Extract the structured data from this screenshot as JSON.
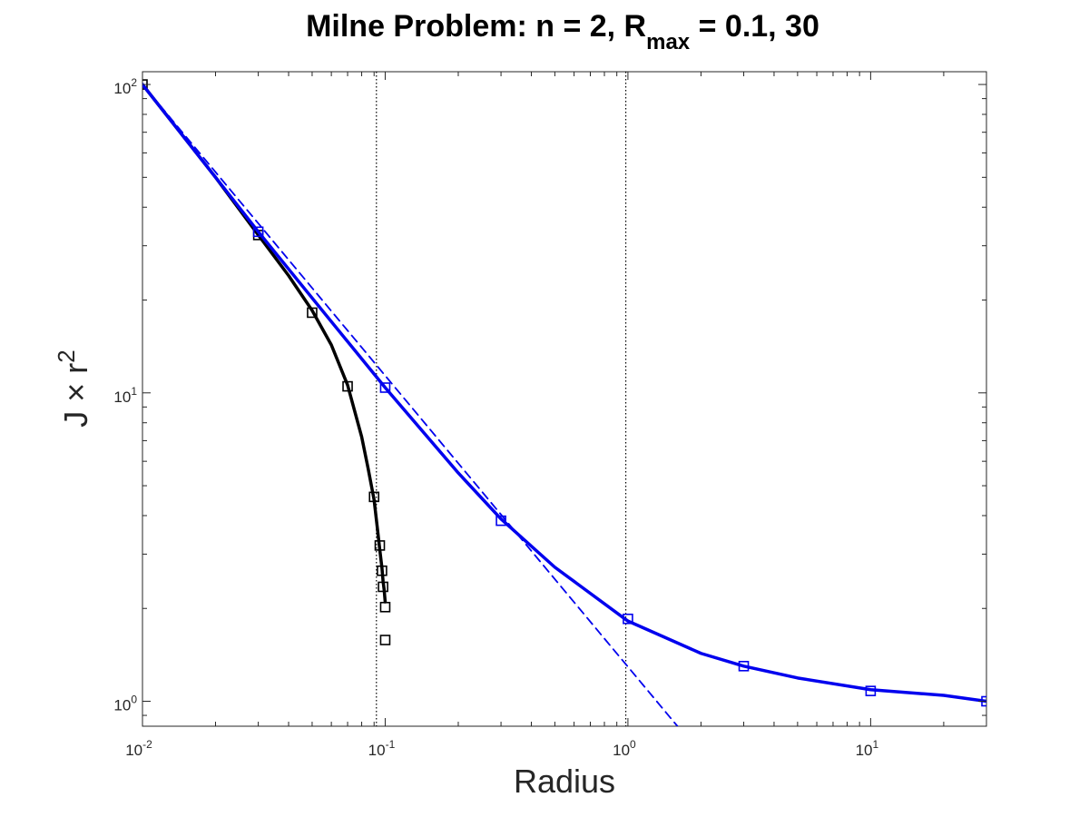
{
  "chart_data": {
    "type": "line",
    "title": {
      "main": "Milne Problem: n = 2, R",
      "subscript": "max",
      "rest": " = 0.1, 30"
    },
    "xlabel": "Radius",
    "ylabel": {
      "base": "J × r",
      "superscript": "2"
    },
    "xscale": "log",
    "yscale": "log",
    "xlim": [
      0.01,
      30
    ],
    "ylim": [
      0.83,
      110
    ],
    "grid": false,
    "x_ticks": [
      {
        "value": 0.01,
        "base": "10",
        "exp": "-2"
      },
      {
        "value": 0.1,
        "base": "10",
        "exp": "-1"
      },
      {
        "value": 1,
        "base": "10",
        "exp": "0"
      },
      {
        "value": 10,
        "base": "10",
        "exp": "1"
      }
    ],
    "y_ticks": [
      {
        "value": 1,
        "base": "10",
        "exp": "0"
      },
      {
        "value": 10,
        "base": "10",
        "exp": "1"
      },
      {
        "value": 100,
        "base": "10",
        "exp": "2"
      }
    ],
    "vlines": [
      0.092,
      0.98
    ],
    "series": [
      {
        "style": "solid",
        "color": "#000000",
        "x": [
          0.01,
          0.02,
          0.03,
          0.04,
          0.05,
          0.06,
          0.07,
          0.08,
          0.085,
          0.09,
          0.093,
          0.095,
          0.097,
          0.098,
          0.099,
          0.1
        ],
        "y": [
          100,
          50,
          32.5,
          24,
          18.5,
          14.3,
          10.6,
          7.2,
          5.7,
          4.5,
          3.6,
          3.1,
          2.7,
          2.45,
          2.3,
          2.1
        ]
      },
      {
        "style": "markers",
        "color": "#000000",
        "x": [
          0.01,
          0.03,
          0.05,
          0.07,
          0.09,
          0.095,
          0.097,
          0.098,
          0.1,
          0.1
        ],
        "y": [
          100,
          32.5,
          18.2,
          10.5,
          4.6,
          3.2,
          2.65,
          2.35,
          2.02,
          1.58
        ]
      },
      {
        "style": "solid",
        "color": "#0000ee",
        "x": [
          0.01,
          0.02,
          0.03,
          0.05,
          0.1,
          0.2,
          0.3,
          0.5,
          1,
          2,
          3,
          5,
          10,
          20,
          30
        ],
        "y": [
          100,
          50,
          33.3,
          20.3,
          10.4,
          5.5,
          3.9,
          2.72,
          1.82,
          1.43,
          1.3,
          1.19,
          1.09,
          1.045,
          1.0
        ]
      },
      {
        "style": "markers",
        "color": "#0000ee",
        "x": [
          0.03,
          0.1,
          0.3,
          1,
          3,
          10,
          30
        ],
        "y": [
          33.3,
          10.4,
          3.85,
          1.85,
          1.3,
          1.08,
          1.0
        ]
      },
      {
        "style": "dashed",
        "color": "#0000ee",
        "x": [
          0.01,
          1.6
        ],
        "y": [
          100,
          0.83
        ]
      }
    ]
  }
}
